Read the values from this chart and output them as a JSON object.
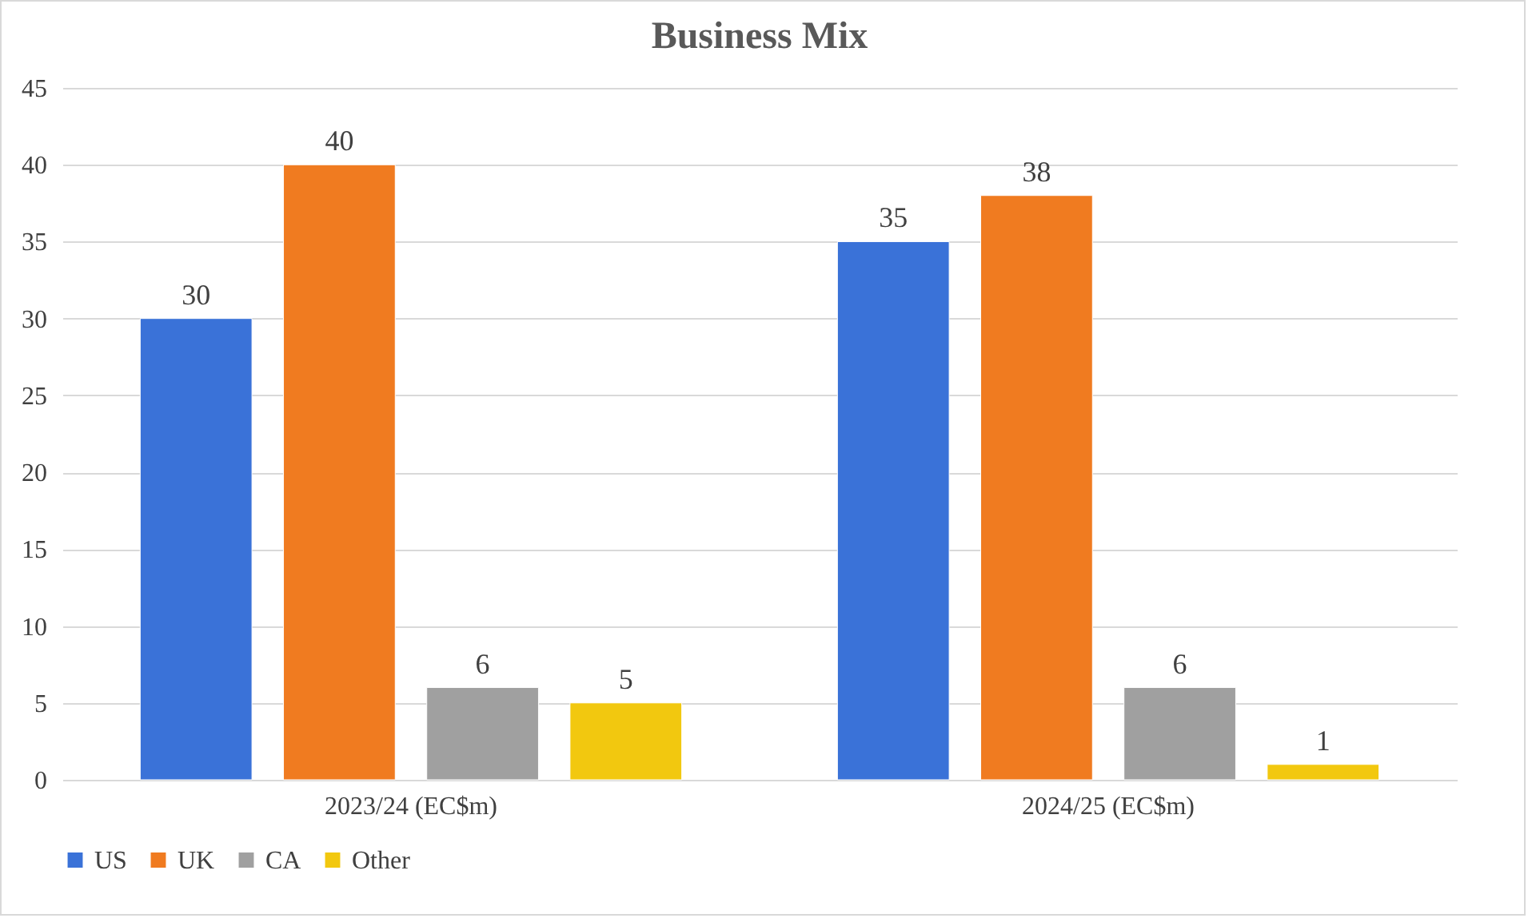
{
  "chart_data": {
    "type": "bar",
    "title": "Business Mix",
    "categories": [
      "2023/24 (EC$m)",
      "2024/25 (EC$m)"
    ],
    "series": [
      {
        "name": "US",
        "color": "#3a72d8",
        "values": [
          30,
          35
        ]
      },
      {
        "name": "UK",
        "color": "#f07b20",
        "values": [
          40,
          38
        ]
      },
      {
        "name": "CA",
        "color": "#a0a0a0",
        "values": [
          6,
          6
        ]
      },
      {
        "name": "Other",
        "color": "#f2c80f",
        "values": [
          5,
          1
        ]
      }
    ],
    "ylim": [
      0,
      45
    ],
    "yticks": [
      0,
      5,
      10,
      15,
      20,
      25,
      30,
      35,
      40,
      45
    ],
    "grid": "y",
    "legend": "bottom",
    "data_labels": true
  }
}
